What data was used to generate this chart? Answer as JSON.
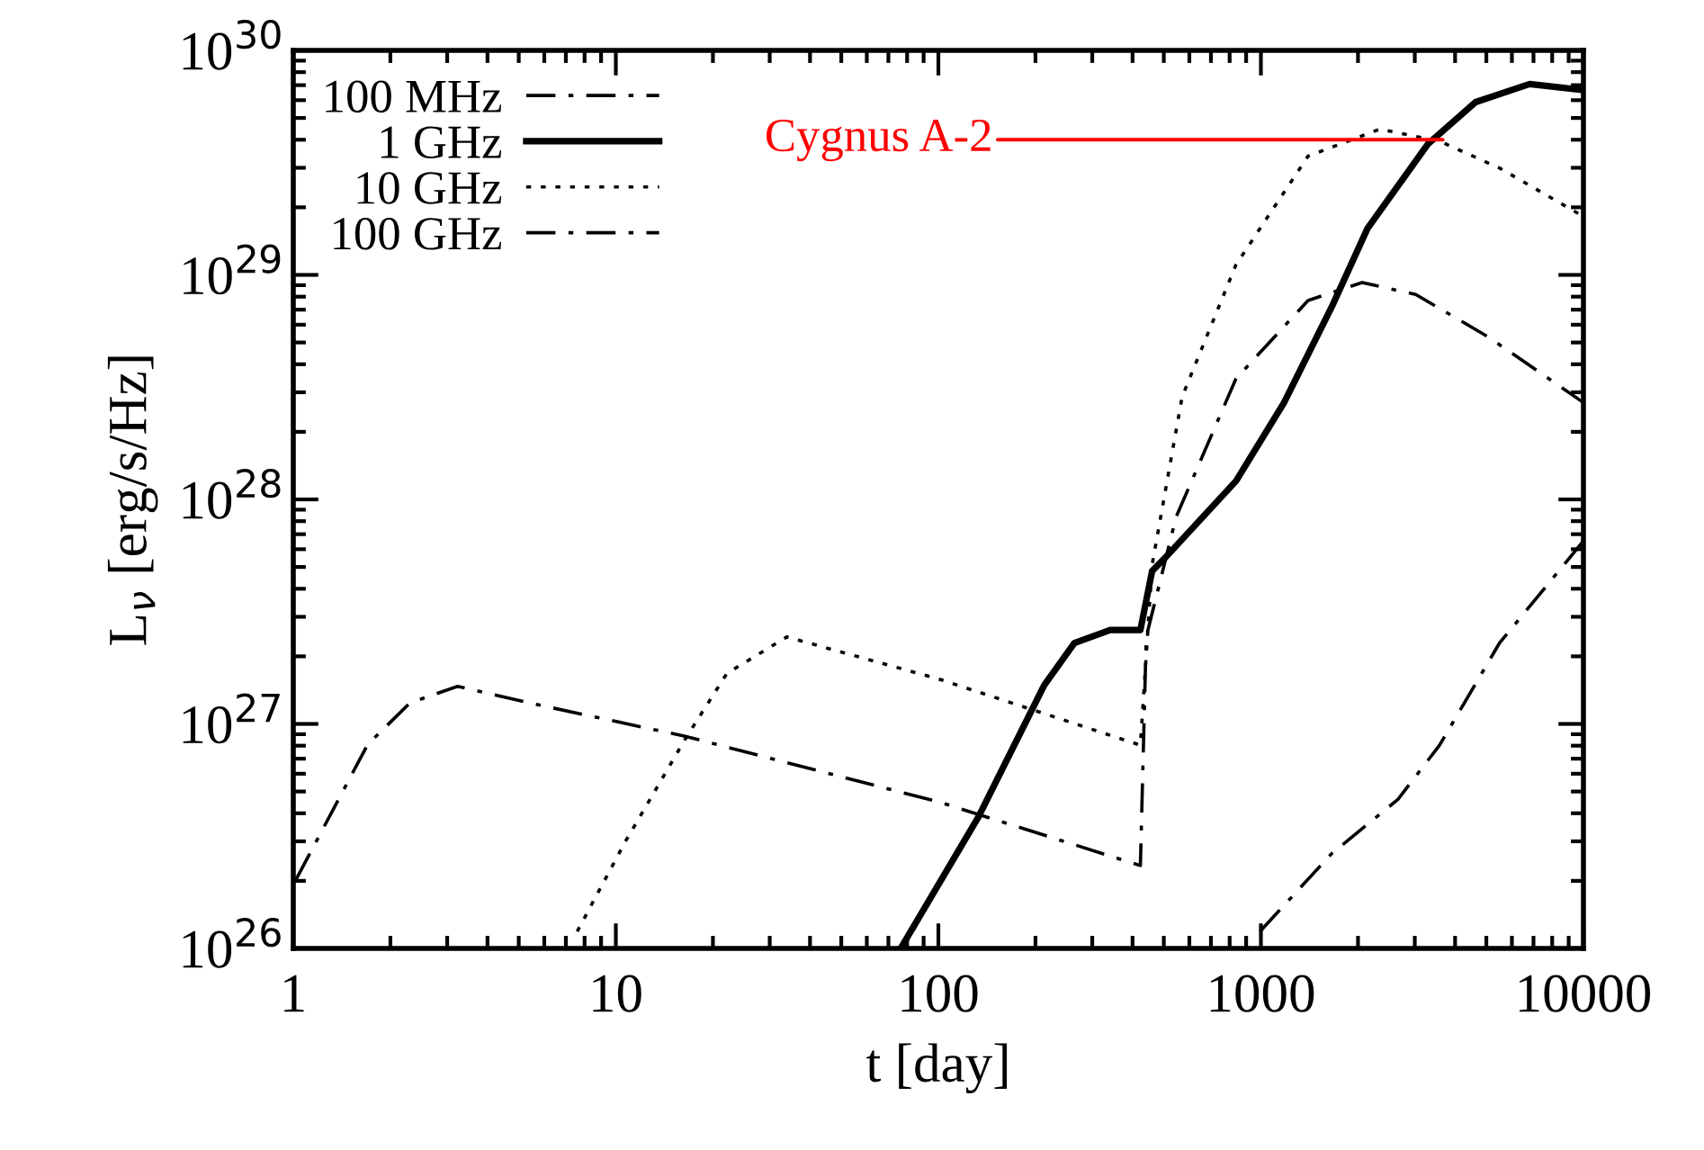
{
  "chart_data": {
    "type": "line",
    "xlabel": "t [day]",
    "ylabel": "L$_{ν}$ [erg/s/Hz]",
    "log": "xy",
    "xlim": [
      1,
      10000
    ],
    "ylim": [
      1e+26,
      1e+30
    ],
    "xticks": [
      1,
      10,
      100,
      1000,
      10000
    ],
    "yticks": [
      {
        "value": 1e+26,
        "label": "10$^{26}$"
      },
      {
        "value": 1e+27,
        "label": "10$^{27}$"
      },
      {
        "value": 1e+28,
        "label": "10$^{28}$"
      },
      {
        "value": 1e+29,
        "label": "10$^{29}$"
      },
      {
        "value": 1e+30,
        "label": "10$^{30}$"
      }
    ],
    "grid": false,
    "legend": "top left",
    "marker": "none",
    "series": [
      {
        "name": "100 MHz",
        "color": "#000000",
        "line_style": "dashdot",
        "x": [
          993,
          1660,
          2660,
          3580,
          5490,
          10000
        ],
        "values": [
          1.19e+26,
          2.65e+26,
          4.61e+26,
          8.04e+26,
          2.29e+27,
          6.53e+27
        ]
      },
      {
        "name": "1 GHz",
        "color": "#000000",
        "line_style": "solid",
        "x": [
          76.4,
          133,
          213,
          264,
          341,
          423,
          460,
          501,
          838,
          1180,
          1660,
          2140,
          3290,
          4630,
          6810,
          10000
        ],
        "values": [
          1e+26,
          3.84e+26,
          1.49e+27,
          2.29e+27,
          2.62e+27,
          2.62e+27,
          4.8e+27,
          5.43e+27,
          1.21e+28,
          2.7e+28,
          7.23e+28,
          1.61e+29,
          3.82e+29,
          5.88e+29,
          7.08e+29,
          6.65e+29
        ]
      },
      {
        "name": "10 GHz",
        "color": "#000000",
        "line_style": "dotted",
        "x": [
          7.59,
          10.7,
          16.4,
          22.1,
          33.9,
          101,
          423,
          460,
          570,
          837,
          1400,
          2340,
          3580,
          5500,
          10000
        ],
        "values": [
          1.19e+26,
          2.99e+26,
          8.55e+26,
          1.68e+27,
          2.44e+27,
          1.58e+27,
          8.04e+26,
          5.11e+27,
          2.87e+28,
          1.11e+29,
          3.38e+29,
          4.46e+29,
          3.94e+29,
          2.99e+29,
          1.82e+29
        ]
      },
      {
        "name": "100 GHz",
        "color": "#000000",
        "line_style": "dashdot",
        "x": [
          1.02,
          1.7,
          2.3,
          3.23,
          5.4,
          16.4,
          101,
          423,
          441,
          546,
          837,
          1400,
          2060,
          3020,
          5050,
          10000
        ],
        "values": [
          2.03e+26,
          8.09e+26,
          1.24e+27,
          1.47e+27,
          1.24e+27,
          8.81e+26,
          4.48e+26,
          2.34e+26,
          2.44e+27,
          8.36e+27,
          3.45e+28,
          7.69e+28,
          9.25e+28,
          8.18e+28,
          5.31e+28,
          2.7e+28
        ]
      }
    ],
    "annotations": [
      {
        "text": "Cygnus A-2",
        "x": 3660,
        "y": 4e+29
      }
    ]
  }
}
